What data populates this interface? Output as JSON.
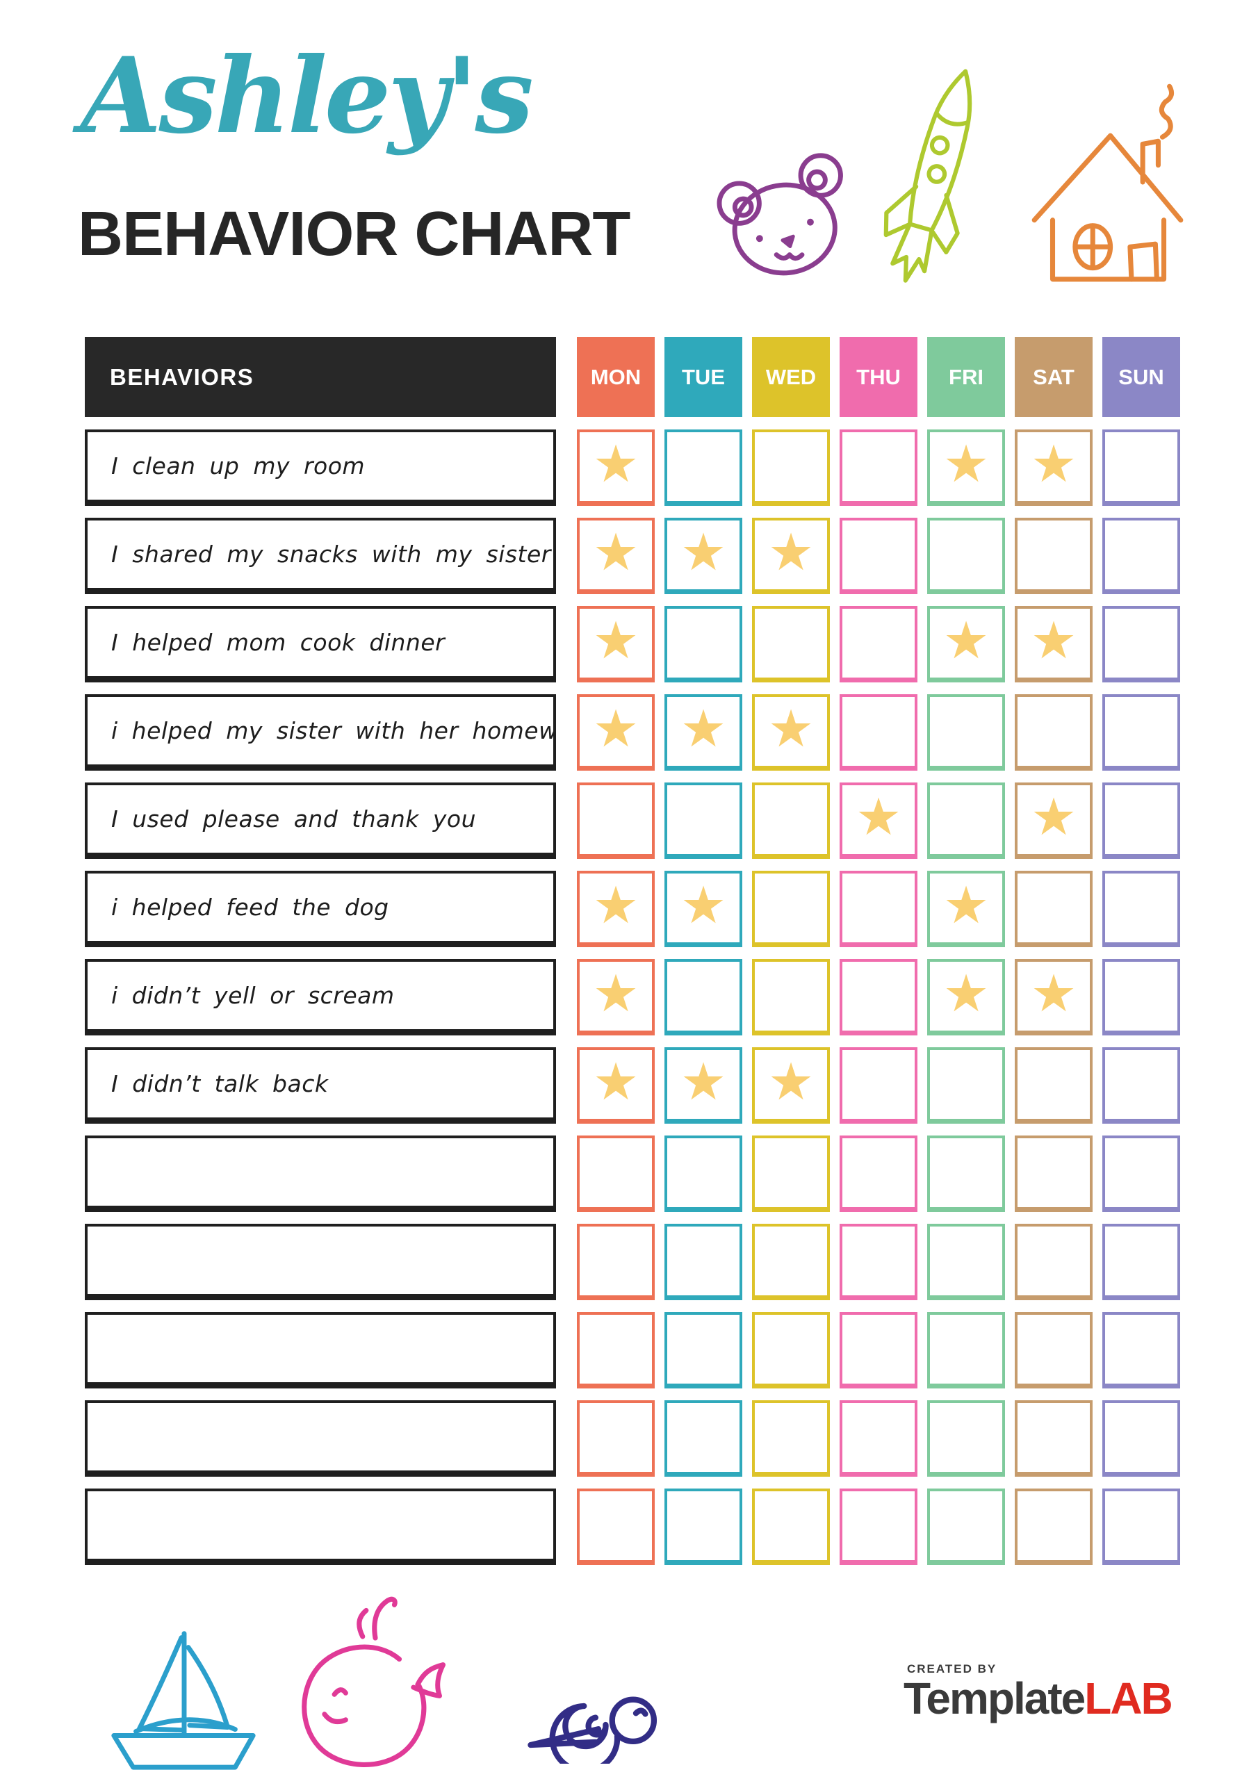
{
  "header": {
    "name_title": "Ashley's",
    "name_title_color": "#38a7b7",
    "chart_title": "BEHAVIOR CHART",
    "chart_title_color": "#262626",
    "doodles": [
      {
        "name": "bear-icon",
        "color": "#8a3d8f"
      },
      {
        "name": "rocket-icon",
        "color": "#aec92f"
      },
      {
        "name": "house-icon",
        "color": "#e6873b"
      }
    ]
  },
  "table": {
    "behaviors_header": "BEHAVIORS",
    "header_bg": "#282828",
    "header_text_color": "#ffffff",
    "star_glyph": "★",
    "star_color": "#f9cf72",
    "days": [
      {
        "label": "MON",
        "color": "#ee7155"
      },
      {
        "label": "TUE",
        "color": "#2fa9bb"
      },
      {
        "label": "WED",
        "color": "#ddc32a"
      },
      {
        "label": "THU",
        "color": "#f06cad"
      },
      {
        "label": "FRI",
        "color": "#7fca9c"
      },
      {
        "label": "SAT",
        "color": "#c69c6d"
      },
      {
        "label": "SUN",
        "color": "#8b87c6"
      }
    ],
    "rows": [
      {
        "behavior": "I clean up my room",
        "stars": [
          1,
          0,
          0,
          0,
          1,
          1,
          0
        ]
      },
      {
        "behavior": "I shared my snacks with my sister",
        "stars": [
          1,
          1,
          1,
          0,
          0,
          0,
          0
        ]
      },
      {
        "behavior": "I helped mom cook dinner",
        "stars": [
          1,
          0,
          0,
          0,
          1,
          1,
          0
        ]
      },
      {
        "behavior": "i helped my sister with her homework",
        "stars": [
          1,
          1,
          1,
          0,
          0,
          0,
          0
        ]
      },
      {
        "behavior": "I used please and thank you",
        "stars": [
          0,
          0,
          0,
          1,
          0,
          1,
          0
        ]
      },
      {
        "behavior": "i helped feed the dog",
        "stars": [
          1,
          1,
          0,
          0,
          1,
          0,
          0
        ]
      },
      {
        "behavior": "i didn’t yell or scream",
        "stars": [
          1,
          0,
          0,
          0,
          1,
          1,
          0
        ]
      },
      {
        "behavior": "I didn’t talk back",
        "stars": [
          1,
          1,
          1,
          0,
          0,
          0,
          0
        ]
      },
      {
        "behavior": "",
        "stars": [
          0,
          0,
          0,
          0,
          0,
          0,
          0
        ]
      },
      {
        "behavior": "",
        "stars": [
          0,
          0,
          0,
          0,
          0,
          0,
          0
        ]
      },
      {
        "behavior": "",
        "stars": [
          0,
          0,
          0,
          0,
          0,
          0,
          0
        ]
      },
      {
        "behavior": "",
        "stars": [
          0,
          0,
          0,
          0,
          0,
          0,
          0
        ]
      },
      {
        "behavior": "",
        "stars": [
          0,
          0,
          0,
          0,
          0,
          0,
          0
        ]
      }
    ]
  },
  "footer": {
    "doodles": [
      {
        "name": "sailboat-icon",
        "color": "#2b9fcc"
      },
      {
        "name": "whale-icon",
        "color": "#e03a97"
      },
      {
        "name": "snail-icon",
        "color": "#322d86"
      }
    ],
    "logo": {
      "created_by": "CREATED BY",
      "brand_part1": "Template",
      "brand_part2": "LAB",
      "brand_color1": "#3a3a3a",
      "brand_color2": "#e02b20"
    }
  }
}
